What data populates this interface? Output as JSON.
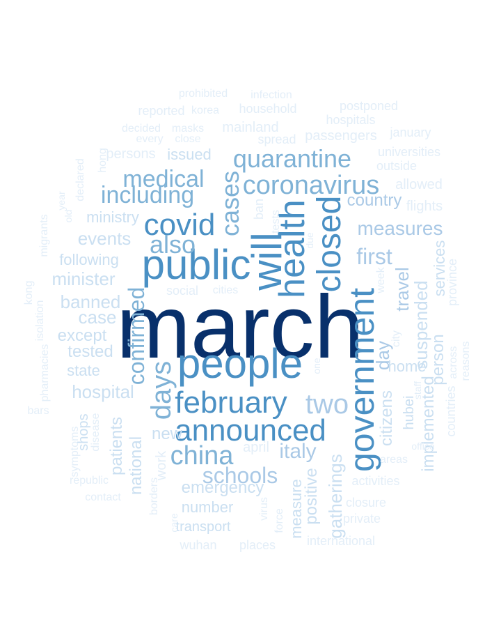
{
  "words": [
    {
      "text": "march",
      "weight": 1.0
    },
    {
      "text": "people",
      "weight": 0.72
    },
    {
      "text": "public",
      "weight": 0.66
    },
    {
      "text": "will",
      "weight": 0.7
    },
    {
      "text": "health",
      "weight": 0.62
    },
    {
      "text": "closed",
      "weight": 0.6
    },
    {
      "text": "government",
      "weight": 0.62
    },
    {
      "text": "covid",
      "weight": 0.56
    },
    {
      "text": "february",
      "weight": 0.58
    },
    {
      "text": "announced",
      "weight": 0.55
    },
    {
      "text": "cases",
      "weight": 0.54
    },
    {
      "text": "coronavirus",
      "weight": 0.5
    },
    {
      "text": "quarantine",
      "weight": 0.48
    },
    {
      "text": "medical",
      "weight": 0.46
    },
    {
      "text": "including",
      "weight": 0.44
    },
    {
      "text": "also",
      "weight": 0.45
    },
    {
      "text": "days",
      "weight": 0.48
    },
    {
      "text": "china",
      "weight": 0.44
    },
    {
      "text": "schools",
      "weight": 0.4
    },
    {
      "text": "confirmed",
      "weight": 0.42
    },
    {
      "text": "two",
      "weight": 0.4
    },
    {
      "text": "measures",
      "weight": 0.38
    },
    {
      "text": "first",
      "weight": 0.38
    },
    {
      "text": "travel",
      "weight": 0.36
    },
    {
      "text": "italy",
      "weight": 0.34
    },
    {
      "text": "day",
      "weight": 0.32
    },
    {
      "text": "country",
      "weight": 0.3
    },
    {
      "text": "ministry",
      "weight": 0.24
    },
    {
      "text": "events",
      "weight": 0.26
    },
    {
      "text": "minister",
      "weight": 0.26
    },
    {
      "text": "following",
      "weight": 0.24
    },
    {
      "text": "banned",
      "weight": 0.26
    },
    {
      "text": "case",
      "weight": 0.24
    },
    {
      "text": "except",
      "weight": 0.24
    },
    {
      "text": "tested",
      "weight": 0.24
    },
    {
      "text": "state",
      "weight": 0.22
    },
    {
      "text": "hospital",
      "weight": 0.26
    },
    {
      "text": "patients",
      "weight": 0.26
    },
    {
      "text": "national",
      "weight": 0.26
    },
    {
      "text": "shops",
      "weight": 0.22
    },
    {
      "text": "new",
      "weight": 0.28
    },
    {
      "text": "emergency",
      "weight": 0.28
    },
    {
      "text": "number",
      "weight": 0.26
    },
    {
      "text": "transport",
      "weight": 0.22
    },
    {
      "text": "wuhan",
      "weight": 0.18
    },
    {
      "text": "places",
      "weight": 0.18
    },
    {
      "text": "international",
      "weight": 0.18
    },
    {
      "text": "private",
      "weight": 0.16
    },
    {
      "text": "closure",
      "weight": 0.18
    },
    {
      "text": "activities",
      "weight": 0.18
    },
    {
      "text": "gatherings",
      "weight": 0.28
    },
    {
      "text": "positive",
      "weight": 0.24
    },
    {
      "text": "measure",
      "weight": 0.22
    },
    {
      "text": "citizens",
      "weight": 0.26
    },
    {
      "text": "hubei",
      "weight": 0.22
    },
    {
      "text": "home",
      "weight": 0.26
    },
    {
      "text": "suspended",
      "weight": 0.28
    },
    {
      "text": "person",
      "weight": 0.26
    },
    {
      "text": "implemented",
      "weight": 0.26
    },
    {
      "text": "services",
      "weight": 0.22
    },
    {
      "text": "province",
      "weight": 0.2
    },
    {
      "text": "across",
      "weight": 0.18
    },
    {
      "text": "reasons",
      "weight": 0.16
    },
    {
      "text": "countries",
      "weight": 0.18
    },
    {
      "text": "flights",
      "weight": 0.2
    },
    {
      "text": "allowed",
      "weight": 0.2
    },
    {
      "text": "outside",
      "weight": 0.18
    },
    {
      "text": "universities",
      "weight": 0.18
    },
    {
      "text": "january",
      "weight": 0.18
    },
    {
      "text": "passengers",
      "weight": 0.2
    },
    {
      "text": "hospitals",
      "weight": 0.18
    },
    {
      "text": "postponed",
      "weight": 0.18
    },
    {
      "text": "household",
      "weight": 0.18
    },
    {
      "text": "infection",
      "weight": 0.16
    },
    {
      "text": "prohibited",
      "weight": 0.16
    },
    {
      "text": "reported",
      "weight": 0.18
    },
    {
      "text": "korea",
      "weight": 0.16
    },
    {
      "text": "mainland",
      "weight": 0.2
    },
    {
      "text": "decided",
      "weight": 0.16
    },
    {
      "text": "masks",
      "weight": 0.16
    },
    {
      "text": "spread",
      "weight": 0.18
    },
    {
      "text": "every",
      "weight": 0.16
    },
    {
      "text": "close",
      "weight": 0.16
    },
    {
      "text": "issued",
      "weight": 0.22
    },
    {
      "text": "persons",
      "weight": 0.2
    },
    {
      "text": "hong",
      "weight": 0.16
    },
    {
      "text": "kong",
      "weight": 0.16
    },
    {
      "text": "isolation",
      "weight": 0.16
    },
    {
      "text": "pharmacies",
      "weight": 0.16
    },
    {
      "text": "bars",
      "weight": 0.16
    },
    {
      "text": "symptoms",
      "weight": 0.16
    },
    {
      "text": "disease",
      "weight": 0.16
    },
    {
      "text": "republic",
      "weight": 0.16
    },
    {
      "text": "contact",
      "weight": 0.16
    },
    {
      "text": "borders",
      "weight": 0.16
    },
    {
      "text": "care",
      "weight": 0.14
    },
    {
      "text": "work",
      "weight": 0.2
    },
    {
      "text": "april",
      "weight": 0.2
    },
    {
      "text": "social",
      "weight": 0.18
    },
    {
      "text": "cities",
      "weight": 0.16
    },
    {
      "text": "year",
      "weight": 0.14
    },
    {
      "text": "old",
      "weight": 0.14
    },
    {
      "text": "declared",
      "weight": 0.16
    },
    {
      "text": "migrants",
      "weight": 0.16
    },
    {
      "text": "ban",
      "weight": 0.18
    },
    {
      "text": "tests",
      "weight": 0.16
    },
    {
      "text": "week",
      "weight": 0.16
    },
    {
      "text": "city",
      "weight": 0.16
    },
    {
      "text": "virus",
      "weight": 0.16
    },
    {
      "text": "force",
      "weight": 0.16
    },
    {
      "text": "areas",
      "weight": 0.16
    },
    {
      "text": "office",
      "weight": 0.14
    },
    {
      "text": "staff",
      "weight": 0.14
    },
    {
      "text": "due",
      "weight": 0.14
    },
    {
      "text": "one",
      "weight": 0.14
    }
  ]
}
